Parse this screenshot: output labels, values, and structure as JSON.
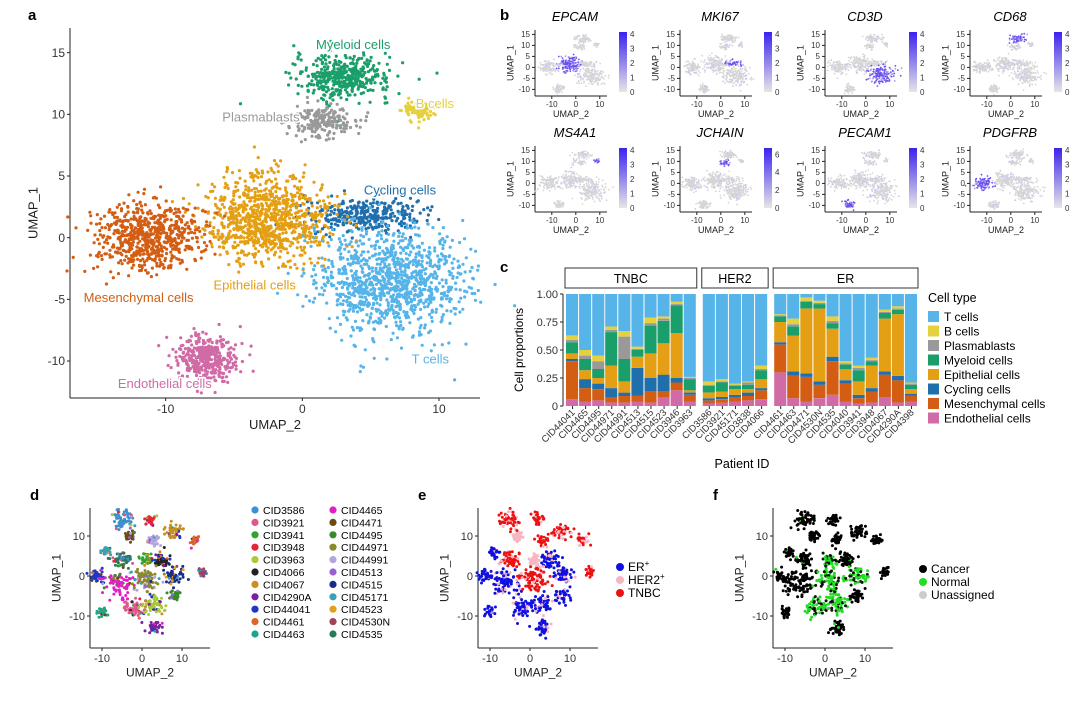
{
  "panel_a": {
    "letter": "a",
    "xlabel": "UMAP_2",
    "ylabel": "UMAP_1",
    "xticks": [
      -10,
      0,
      10
    ],
    "yticks": [
      -10,
      -5,
      0,
      5,
      10,
      15
    ],
    "xlim": [
      -17,
      13
    ],
    "ylim": [
      -13,
      17
    ],
    "clusters": [
      {
        "name": "Myeloid cells",
        "color": "#1a9e6a",
        "cx": 3,
        "cy": 13,
        "rx": 3.2,
        "ry": 1.6,
        "n": 420
      },
      {
        "name": "B cells",
        "color": "#e5d03d",
        "cx": 8.5,
        "cy": 10.3,
        "rx": 1.0,
        "ry": 0.8,
        "n": 90
      },
      {
        "name": "Plasmablasts",
        "color": "#999999",
        "cx": 1.5,
        "cy": 9.5,
        "rx": 2.2,
        "ry": 1.2,
        "n": 200
      },
      {
        "name": "Cycling cells",
        "color": "#1f6fad",
        "cx": 4.5,
        "cy": 1.8,
        "rx": 4.0,
        "ry": 1.2,
        "n": 320
      },
      {
        "name": "Epithelial cells",
        "color": "#e49f14",
        "cx": -2.5,
        "cy": 1.5,
        "rx": 4.0,
        "ry": 3.2,
        "n": 900
      },
      {
        "name": "Mesenchymal cells",
        "color": "#d35e13",
        "cx": -11.5,
        "cy": 0,
        "rx": 3.5,
        "ry": 2.6,
        "n": 650
      },
      {
        "name": "T cells",
        "color": "#56b4e9",
        "cx": 6.5,
        "cy": -3.5,
        "rx": 4.8,
        "ry": 3.8,
        "n": 1100
      },
      {
        "name": "Endothelial cells",
        "color": "#d16ba5",
        "cx": -7,
        "cy": -9.8,
        "rx": 2.0,
        "ry": 1.6,
        "n": 380
      }
    ]
  },
  "panel_b": {
    "letter": "b",
    "xlabel": "UMAP_2",
    "ylabel": "UMAP_1",
    "xticks": [
      -10,
      0,
      10
    ],
    "yticks": [
      -10,
      -5,
      0,
      5,
      10,
      15
    ],
    "genes": [
      {
        "name": "EPCAM",
        "scale": [
          "0",
          "1",
          "2",
          "3",
          "4"
        ],
        "target": "Epithelial cells"
      },
      {
        "name": "MKI67",
        "scale": [
          "0",
          "1",
          "2",
          "3",
          "4"
        ],
        "target": "Cycling cells"
      },
      {
        "name": "CD3D",
        "scale": [
          "0",
          "1",
          "2",
          "3",
          "4"
        ],
        "target": "T cells"
      },
      {
        "name": "CD68",
        "scale": [
          "0",
          "1",
          "2",
          "3",
          "4"
        ],
        "target": "Myeloid cells"
      },
      {
        "name": "MS4A1",
        "scale": [
          "0",
          "1",
          "2",
          "3",
          "4"
        ],
        "target": "B cells"
      },
      {
        "name": "JCHAIN",
        "scale": [
          "0",
          "2",
          "4",
          "6"
        ],
        "target": "Plasmablasts"
      },
      {
        "name": "PECAM1",
        "scale": [
          "0",
          "1",
          "2",
          "3",
          "4"
        ],
        "target": "Endothelial cells"
      },
      {
        "name": "PDGFRB",
        "scale": [
          "0",
          "1",
          "2",
          "3",
          "4"
        ],
        "target": "Mesenchymal cells"
      }
    ]
  },
  "panel_c": {
    "letter": "c",
    "ylabel": "Cell proportions",
    "xlabel": "Patient ID",
    "yticks": [
      "0",
      "0.25",
      "0.50",
      "0.75",
      "1.00"
    ],
    "legend_title": "Cell type",
    "groups": [
      {
        "name": "TNBC",
        "patients": [
          "CID44041",
          "CID4465",
          "CID4495",
          "CID44971",
          "CID44991",
          "CID4513",
          "CID4515",
          "CID4523",
          "CID3946",
          "CID3963"
        ]
      },
      {
        "name": "HER2",
        "patients": [
          "CID3586",
          "CID3921",
          "CID45171",
          "CID3838",
          "CID4066"
        ]
      },
      {
        "name": "ER",
        "patients": [
          "CID4461",
          "CID4463",
          "CID4471",
          "CID4530N",
          "CID4535",
          "CID4040",
          "CID3941",
          "CID3948",
          "CID4067",
          "CID4290A",
          "CID4398"
        ]
      }
    ]
  },
  "panel_d": {
    "letter": "d",
    "xlabel": "UMAP_2",
    "ylabel": "UMAP_1",
    "xticks": [
      -10,
      0,
      10
    ],
    "yticks": [
      -10,
      0,
      10
    ],
    "legend": [
      {
        "label": "CID3586",
        "color": "#3e8fd0"
      },
      {
        "label": "CID3921",
        "color": "#e0568f"
      },
      {
        "label": "CID3941",
        "color": "#2ea32e"
      },
      {
        "label": "CID3948",
        "color": "#e3243b"
      },
      {
        "label": "CID3963",
        "color": "#a7c93a"
      },
      {
        "label": "CID4066",
        "color": "#222222"
      },
      {
        "label": "CID4067",
        "color": "#c8901f"
      },
      {
        "label": "CID4290A",
        "color": "#7a1fa2"
      },
      {
        "label": "CID44041",
        "color": "#2137c4"
      },
      {
        "label": "CID4461",
        "color": "#e0642a"
      },
      {
        "label": "CID4463",
        "color": "#1fa58a"
      },
      {
        "label": "CID4465",
        "color": "#e21fc4"
      },
      {
        "label": "CID4471",
        "color": "#6b4a12"
      },
      {
        "label": "CID4495",
        "color": "#3a8a2a"
      },
      {
        "label": "CID44971",
        "color": "#8a8a2a"
      },
      {
        "label": "CID44991",
        "color": "#b4a4dc"
      },
      {
        "label": "CID4513",
        "color": "#9b5fd4"
      },
      {
        "label": "CID4515",
        "color": "#1a2a8c"
      },
      {
        "label": "CID45171",
        "color": "#3aa0b4"
      },
      {
        "label": "CID4523",
        "color": "#e1a020"
      },
      {
        "label": "CID4530N",
        "color": "#a0405a"
      },
      {
        "label": "CID4535",
        "color": "#2a7a5a"
      }
    ]
  },
  "panel_e": {
    "letter": "e",
    "xlabel": "UMAP_2",
    "ylabel": "UMAP_1",
    "xticks": [
      -10,
      0,
      10
    ],
    "yticks": [
      -10,
      0,
      10
    ],
    "legend": [
      {
        "label": "ER",
        "sup": "+",
        "color": "#1010e0"
      },
      {
        "label": "HER2",
        "sup": "+",
        "color": "#f7b6c2"
      },
      {
        "label": "TNBC",
        "sup": "",
        "color": "#ee1111"
      }
    ]
  },
  "panel_f": {
    "letter": "f",
    "xlabel": "UMAP_2",
    "ylabel": "UMAP_1",
    "xticks": [
      -10,
      0,
      10
    ],
    "yticks": [
      -10,
      0,
      10
    ],
    "legend": [
      {
        "label": "Cancer",
        "color": "#000000"
      },
      {
        "label": "Normal",
        "color": "#22dd22"
      },
      {
        "label": "Unassigned",
        "color": "#cccccc"
      }
    ]
  },
  "chart_data": [
    {
      "type": "scatter",
      "title": "a",
      "xlabel": "UMAP_2",
      "ylabel": "UMAP_1",
      "xlim": [
        -17,
        13
      ],
      "ylim": [
        -13,
        17
      ],
      "series": [
        "Myeloid cells",
        "B cells",
        "Plasmablasts",
        "Cycling cells",
        "Epithelial cells",
        "Mesenchymal cells",
        "T cells",
        "Endothelial cells"
      ]
    },
    {
      "type": "bar",
      "title": "c",
      "stacked": true,
      "xlabel": "Patient ID",
      "ylabel": "Cell proportions",
      "ylim": [
        0,
        1
      ],
      "categories": [
        "CID44041",
        "CID4465",
        "CID4495",
        "CID44971",
        "CID44991",
        "CID4513",
        "CID4515",
        "CID4523",
        "CID3946",
        "CID3963",
        "CID3586",
        "CID3921",
        "CID45171",
        "CID3838",
        "CID4066",
        "CID4461",
        "CID4463",
        "CID4471",
        "CID4530N",
        "CID4535",
        "CID4040",
        "CID3941",
        "CID3948",
        "CID4067",
        "CID4290A",
        "CID4398"
      ],
      "series": [
        {
          "name": "Endothelial cells",
          "color": "#d16ba5",
          "values": [
            0.06,
            0.04,
            0.05,
            0.03,
            0.03,
            0.04,
            0.03,
            0.08,
            0.14,
            0.04,
            0.02,
            0.03,
            0.04,
            0.05,
            0.06,
            0.3,
            0.07,
            0.04,
            0.07,
            0.1,
            0.04,
            0.02,
            0.03,
            0.08,
            0.03,
            0.04
          ]
        },
        {
          "name": "Mesenchymal cells",
          "color": "#d35e13",
          "values": [
            0.34,
            0.12,
            0.1,
            0.05,
            0.06,
            0.05,
            0.1,
            0.05,
            0.07,
            0.06,
            0.03,
            0.03,
            0.04,
            0.04,
            0.08,
            0.25,
            0.2,
            0.22,
            0.12,
            0.3,
            0.16,
            0.05,
            0.1,
            0.2,
            0.2,
            0.05
          ]
        },
        {
          "name": "Cycling cells",
          "color": "#1f6fad",
          "values": [
            0.02,
            0.08,
            0.05,
            0.08,
            0.03,
            0.25,
            0.12,
            0.15,
            0.04,
            0.02,
            0.02,
            0.02,
            0.02,
            0.03,
            0.02,
            0.02,
            0.04,
            0.03,
            0.03,
            0.04,
            0.03,
            0.03,
            0.03,
            0.03,
            0.04,
            0.02
          ]
        },
        {
          "name": "Epithelial cells",
          "color": "#e49f14",
          "values": [
            0.05,
            0.08,
            0.05,
            0.2,
            0.1,
            0.1,
            0.22,
            0.28,
            0.4,
            0.02,
            0.05,
            0.05,
            0.05,
            0.03,
            0.08,
            0.18,
            0.32,
            0.58,
            0.65,
            0.25,
            0.1,
            0.12,
            0.2,
            0.47,
            0.55,
            0.04
          ]
        },
        {
          "name": "Myeloid cells",
          "color": "#1a9e6a",
          "values": [
            0.1,
            0.1,
            0.08,
            0.3,
            0.2,
            0.06,
            0.25,
            0.2,
            0.25,
            0.1,
            0.06,
            0.08,
            0.03,
            0.04,
            0.08,
            0.05,
            0.08,
            0.06,
            0.04,
            0.05,
            0.04,
            0.1,
            0.04,
            0.05,
            0.04,
            0.04
          ]
        },
        {
          "name": "Plasmablasts",
          "color": "#999999",
          "values": [
            0.02,
            0.03,
            0.07,
            0.02,
            0.2,
            0.01,
            0.02,
            0.02,
            0.01,
            0.01,
            0.01,
            0.01,
            0.01,
            0.02,
            0.01,
            0.01,
            0.02,
            0.01,
            0.01,
            0.02,
            0.01,
            0.02,
            0.01,
            0.01,
            0.01,
            0.01
          ]
        },
        {
          "name": "B cells",
          "color": "#e5d03d",
          "values": [
            0.04,
            0.05,
            0.05,
            0.03,
            0.05,
            0.02,
            0.05,
            0.02,
            0.02,
            0.01,
            0.03,
            0.02,
            0.01,
            0.01,
            0.03,
            0.01,
            0.05,
            0.03,
            0.02,
            0.04,
            0.02,
            0.02,
            0.02,
            0.02,
            0.02,
            0.01
          ]
        },
        {
          "name": "T cells",
          "color": "#56b4e9",
          "values": [
            0.37,
            0.5,
            0.55,
            0.29,
            0.33,
            0.47,
            0.21,
            0.2,
            0.07,
            0.74,
            0.78,
            0.76,
            0.8,
            0.78,
            0.64,
            0.18,
            0.22,
            0.03,
            0.06,
            0.2,
            0.6,
            0.64,
            0.57,
            0.14,
            0.11,
            0.79
          ]
        }
      ]
    },
    {
      "type": "scatter",
      "title": "d",
      "xlabel": "UMAP_2",
      "ylabel": "UMAP_1",
      "color_by": "Patient ID"
    },
    {
      "type": "scatter",
      "title": "e",
      "xlabel": "UMAP_2",
      "ylabel": "UMAP_1",
      "color_by": "Subtype"
    },
    {
      "type": "scatter",
      "title": "f",
      "xlabel": "UMAP_2",
      "ylabel": "UMAP_1",
      "color_by": "Cancer/Normal"
    }
  ]
}
